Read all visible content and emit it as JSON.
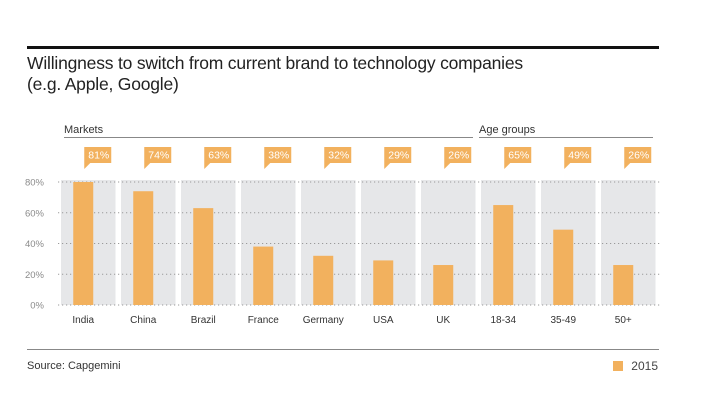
{
  "title_line1": "Willingness to switch from current brand to technology companies",
  "title_line2": "(e.g. Apple, Google)",
  "source": "Source: Capgemini",
  "legend": [
    {
      "label": "2015",
      "color": "#f2b15e"
    }
  ],
  "colors": {
    "bar": "#f2b15e",
    "column_bg": "#e6e7e9",
    "grid": "#9a9a9a"
  },
  "chart_data": {
    "type": "bar",
    "title": "Willingness to switch from current brand to technology companies (e.g. Apple, Google)",
    "xlabel": "",
    "ylabel": "",
    "ylim": [
      0,
      80
    ],
    "yticks": [
      "0%",
      "20%",
      "40%",
      "60%",
      "80%"
    ],
    "ytick_values": [
      0,
      20,
      40,
      60,
      80
    ],
    "grid": true,
    "legend_position": "bottom-right",
    "groups": [
      {
        "label": "Markets",
        "categories": [
          "India",
          "China",
          "Brazil",
          "France",
          "Germany",
          "USA",
          "UK"
        ]
      },
      {
        "label": "Age groups",
        "categories": [
          "18-34",
          "35-49",
          "50+"
        ]
      }
    ],
    "categories": [
      "India",
      "China",
      "Brazil",
      "France",
      "Germany",
      "USA",
      "UK",
      "18-34",
      "35-49",
      "50+"
    ],
    "series": [
      {
        "name": "2015",
        "values": [
          81,
          74,
          63,
          38,
          32,
          29,
          26,
          65,
          49,
          26
        ]
      }
    ],
    "data_labels": [
      "81%",
      "74%",
      "63%",
      "38%",
      "32%",
      "29%",
      "26%",
      "65%",
      "49%",
      "26%"
    ]
  }
}
